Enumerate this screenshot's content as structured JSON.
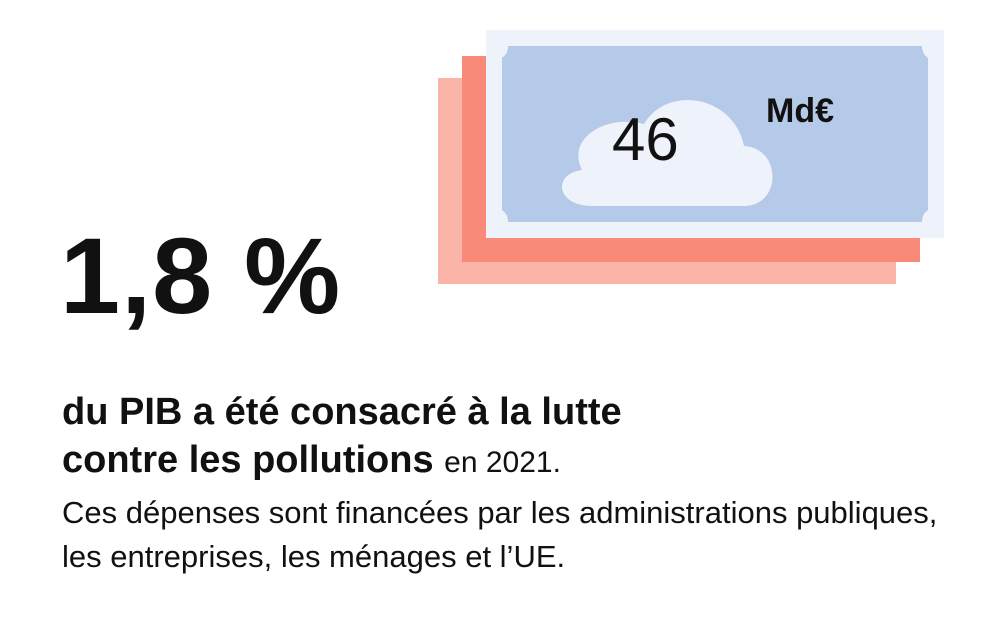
{
  "figure": {
    "percentage": "1,8 %",
    "amount_value": "46",
    "amount_unit": "Md€"
  },
  "headline": {
    "line1": "du PIB a été consacré à la lutte",
    "line2_bold": "contre les pollutions",
    "line2_year": "en 2021."
  },
  "description": "Ces dépenses sont financées par les administrations publiques, les entreprises, les ménages et l’UE.",
  "colors": {
    "banknote_back": "#fab4a8",
    "banknote_middle": "#f98a77",
    "banknote_front_border": "#eef2fa",
    "banknote_front_fill": "#b5c9e8",
    "cloud": "#eef2fa",
    "text": "#111111"
  }
}
